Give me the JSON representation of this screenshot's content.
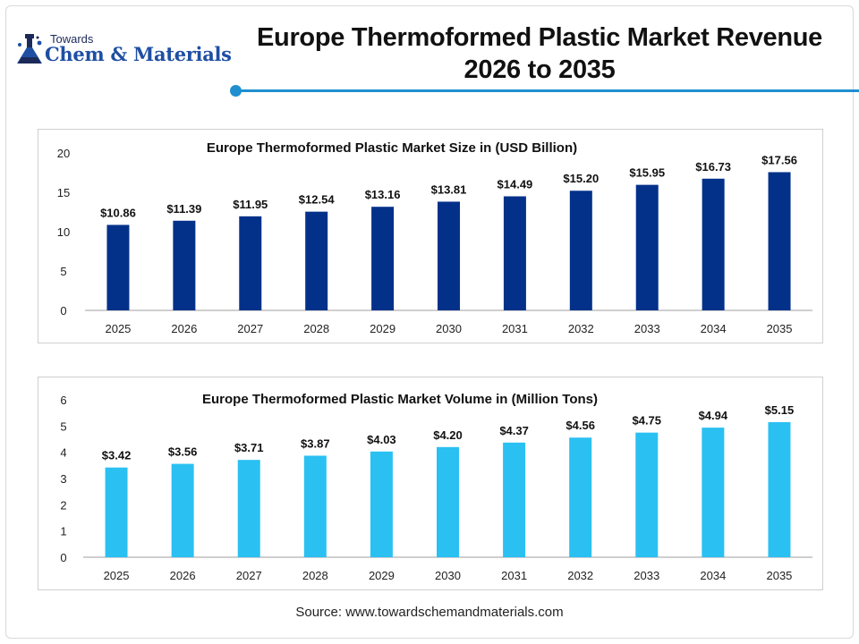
{
  "brand": {
    "line1": "Towards",
    "line2": "Chem & Materials"
  },
  "title": {
    "line1": "Europe Thermoformed Plastic Market Revenue",
    "line2": "2026 to 2035"
  },
  "source": "Source: www.towardschemandmaterials.com",
  "colors": {
    "accent": "#1f8fd0",
    "size_bar": "#03318a",
    "volume_bar": "#2bc0f2"
  },
  "chart_data": [
    {
      "type": "bar",
      "title": "Europe Thermoformed Plastic Market Size in (USD Billion)",
      "categories": [
        "2025",
        "2026",
        "2027",
        "2028",
        "2029",
        "2030",
        "2031",
        "2032",
        "2033",
        "2034",
        "2035"
      ],
      "values": [
        10.86,
        11.39,
        11.95,
        12.54,
        13.16,
        13.81,
        14.49,
        15.2,
        15.95,
        16.73,
        17.56
      ],
      "value_labels": [
        "$10.86",
        "$11.39",
        "$11.95",
        "$12.54",
        "$13.16",
        "$13.81",
        "$14.49",
        "$15.20",
        "$15.95",
        "$16.73",
        "$17.56"
      ],
      "ylim": [
        0,
        20
      ],
      "yticks": [
        0,
        5,
        10,
        15,
        20
      ],
      "grid": false,
      "color": "#03318a"
    },
    {
      "type": "bar",
      "title": "Europe Thermoformed Plastic Market Volume in (Million Tons)",
      "categories": [
        "2025",
        "2026",
        "2027",
        "2028",
        "2029",
        "2030",
        "2031",
        "2032",
        "2033",
        "2034",
        "2035"
      ],
      "values": [
        3.42,
        3.56,
        3.71,
        3.87,
        4.03,
        4.2,
        4.37,
        4.56,
        4.75,
        4.94,
        5.15
      ],
      "value_labels": [
        "$3.42",
        "$3.56",
        "$3.71",
        "$3.87",
        "$4.03",
        "$4.20",
        "$4.37",
        "$4.56",
        "$4.75",
        "$4.94",
        "$5.15"
      ],
      "ylim": [
        0,
        6
      ],
      "yticks": [
        0,
        1,
        2,
        3,
        4,
        5,
        6
      ],
      "grid": false,
      "color": "#2bc0f2"
    }
  ]
}
